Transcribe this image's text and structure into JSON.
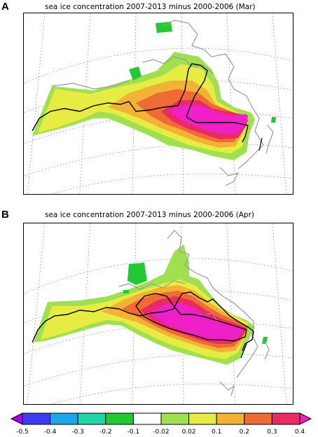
{
  "panels": [
    {
      "letter": "A",
      "title": "sea ice concentration 2007-2013 minus 2000-2006 (Mar)"
    },
    {
      "letter": "B",
      "title": "sea ice concentration 2007-2013 minus 2000-2006 (Apr)"
    }
  ],
  "colorbar": {
    "labels": [
      "-0.5",
      "-0.4",
      "-0.3",
      "-0.2",
      "-0.1",
      "-0.02",
      "0.02",
      "0.1",
      "0.2",
      "0.3",
      "0.4",
      "0.5"
    ],
    "colors": [
      "#a800f0",
      "#3c3cf0",
      "#1aa6e8",
      "#22d3a8",
      "#23c932",
      "#ffffff",
      "#a0e050",
      "#e6ec44",
      "#f2b236",
      "#f06a34",
      "#ea2a62",
      "#f020c8"
    ]
  },
  "palette": {
    "green_neg": "#23c932",
    "light_green": "#a0e050",
    "yellow": "#e6ec44",
    "orange_light": "#f2b236",
    "orange": "#f06a34",
    "red": "#ea2a62",
    "magenta": "#f020c8",
    "coast": "#9a9a9a",
    "contour": "#000000"
  }
}
